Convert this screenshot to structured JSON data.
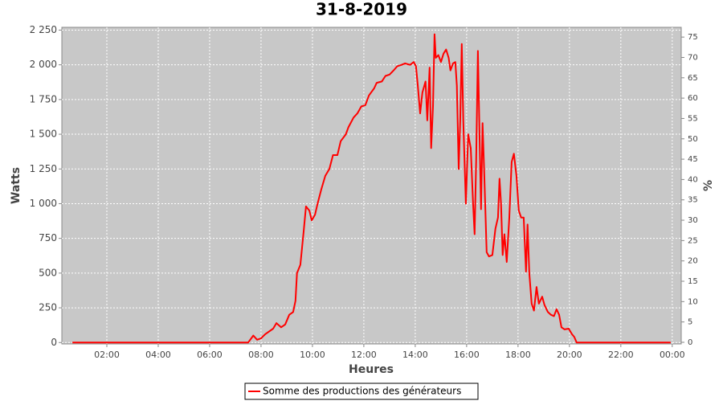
{
  "chart_data": {
    "type": "line",
    "title": "31-8-2019",
    "x_label": "Heures",
    "y_label": "Watts",
    "y2_label": "%",
    "xlim": [
      0.25,
      24.35
    ],
    "ylim": [
      -10,
      2270
    ],
    "y2lim": [
      -0.4,
      77.4
    ],
    "xticks": [
      {
        "value": 2,
        "label": "02:00"
      },
      {
        "value": 4,
        "label": "04:00"
      },
      {
        "value": 6,
        "label": "06:00"
      },
      {
        "value": 8,
        "label": "08:00"
      },
      {
        "value": 10,
        "label": "10:00"
      },
      {
        "value": 12,
        "label": "12:00"
      },
      {
        "value": 14,
        "label": "14:00"
      },
      {
        "value": 16,
        "label": "16:00"
      },
      {
        "value": 18,
        "label": "18:00"
      },
      {
        "value": 20,
        "label": "20:00"
      },
      {
        "value": 22,
        "label": "22:00"
      },
      {
        "value": 24,
        "label": "00:00"
      }
    ],
    "yticks": [
      0,
      250,
      500,
      750,
      {
        "value": 1000,
        "label": "1 000"
      },
      {
        "value": 1250,
        "label": "1 250"
      },
      {
        "value": 1500,
        "label": "1 500"
      },
      {
        "value": 1750,
        "label": "1 750"
      },
      {
        "value": 2000,
        "label": "2 000"
      },
      {
        "value": 2250,
        "label": "2 250"
      }
    ],
    "y2ticks": [
      0,
      5,
      10,
      15,
      20,
      25,
      30,
      35,
      40,
      45,
      50,
      55,
      60,
      65,
      70,
      75
    ],
    "grid": true,
    "legend": "bottom",
    "series": [
      {
        "name": "Somme des productions des  générateurs",
        "color": "#ff0000",
        "x": [
          0.66,
          7.5,
          7.7,
          7.85,
          8.0,
          8.16,
          8.47,
          8.6,
          8.78,
          8.94,
          9.1,
          9.25,
          9.34,
          9.4,
          9.53,
          9.66,
          9.75,
          9.88,
          9.97,
          10.1,
          10.2,
          10.34,
          10.5,
          10.66,
          10.8,
          10.97,
          11.1,
          11.3,
          11.4,
          11.6,
          11.75,
          11.9,
          12.06,
          12.2,
          12.4,
          12.5,
          12.7,
          12.84,
          13.0,
          13.16,
          13.3,
          13.47,
          13.6,
          13.8,
          13.94,
          14.03,
          14.1,
          14.19,
          14.28,
          14.4,
          14.47,
          14.56,
          14.62,
          14.69,
          14.75,
          14.8,
          14.9,
          15.0,
          15.1,
          15.2,
          15.3,
          15.37,
          15.47,
          15.56,
          15.62,
          15.69,
          15.75,
          15.81,
          15.87,
          15.97,
          16.06,
          16.16,
          16.25,
          16.31,
          16.37,
          16.44,
          16.5,
          16.56,
          16.62,
          16.69,
          16.78,
          16.87,
          17.0,
          17.12,
          17.22,
          17.28,
          17.34,
          17.4,
          17.47,
          17.56,
          17.66,
          17.75,
          17.84,
          17.94,
          18.03,
          18.12,
          18.22,
          18.31,
          18.37,
          18.44,
          18.53,
          18.62,
          18.72,
          18.81,
          18.94,
          19.03,
          19.16,
          19.28,
          19.4,
          19.5,
          19.6,
          19.69,
          19.81,
          19.97,
          20.1,
          20.19,
          20.28,
          20.5,
          22.84,
          23.94
        ],
        "values": [
          0,
          0,
          50,
          20,
          30,
          60,
          100,
          140,
          110,
          130,
          200,
          220,
          300,
          500,
          560,
          800,
          980,
          950,
          880,
          920,
          1000,
          1100,
          1200,
          1250,
          1350,
          1350,
          1450,
          1500,
          1550,
          1620,
          1650,
          1700,
          1710,
          1780,
          1830,
          1870,
          1880,
          1920,
          1930,
          1960,
          1990,
          2000,
          2010,
          2000,
          2020,
          1990,
          1850,
          1650,
          1800,
          1880,
          1600,
          1980,
          1400,
          1700,
          2220,
          2050,
          2070,
          2020,
          2080,
          2110,
          2050,
          1960,
          2010,
          2020,
          1850,
          1250,
          1600,
          2150,
          1600,
          1000,
          1500,
          1400,
          1000,
          780,
          1300,
          2100,
          1500,
          960,
          1580,
          1200,
          650,
          620,
          630,
          820,
          900,
          1180,
          1000,
          630,
          780,
          580,
          900,
          1300,
          1360,
          1200,
          950,
          900,
          900,
          510,
          850,
          500,
          280,
          230,
          400,
          280,
          330,
          270,
          220,
          200,
          190,
          240,
          200,
          110,
          95,
          100,
          60,
          40,
          0,
          0,
          0,
          0
        ]
      }
    ]
  }
}
